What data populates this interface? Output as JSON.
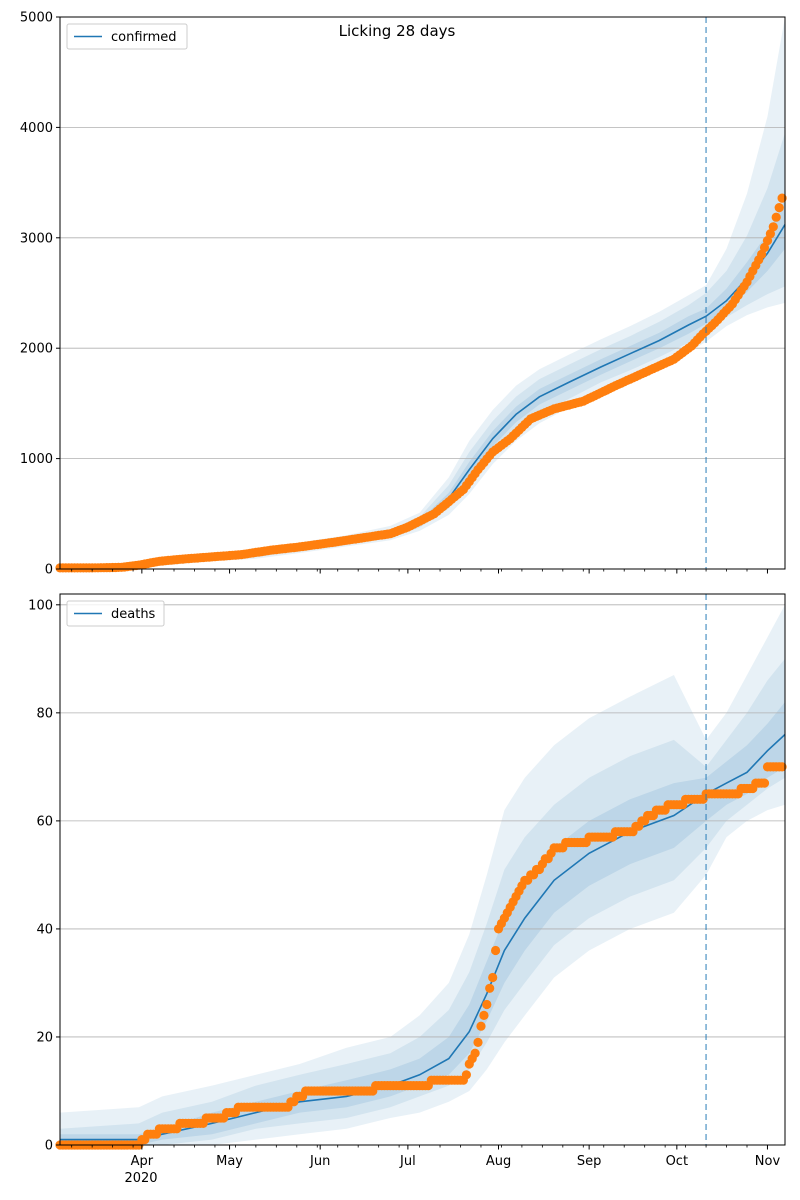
{
  "title": "Licking 28 days",
  "colors": {
    "model_line": "#1f77b4",
    "observed_points": "#ff7f0e",
    "band": "#1f77b4",
    "forecast_marker": "#1f77b4",
    "grid": "#b0b0b0"
  },
  "x_axis": {
    "month_ticks": [
      {
        "label": "Apr",
        "date": "2020-04-01"
      },
      {
        "label": "May",
        "date": "2020-05-01"
      },
      {
        "label": "Jun",
        "date": "2020-06-01"
      },
      {
        "label": "Jul",
        "date": "2020-07-01"
      },
      {
        "label": "Aug",
        "date": "2020-08-01"
      },
      {
        "label": "Sep",
        "date": "2020-09-01"
      },
      {
        "label": "Oct",
        "date": "2020-10-01"
      },
      {
        "label": "Nov",
        "date": "2020-11-01"
      }
    ],
    "year_label": "2020",
    "xlim": [
      "2020-03-04",
      "2020-11-07"
    ]
  },
  "forecast_start": "2020-10-11",
  "chart_data": [
    {
      "type": "line",
      "legend": {
        "label": "confirmed",
        "placement": "upper-left"
      },
      "ylim": [
        0,
        5000
      ],
      "yticks": [
        0,
        1000,
        2000,
        3000,
        4000,
        5000
      ],
      "grid": "y",
      "x": [
        "2020-03-04",
        "2020-03-20",
        "2020-03-30",
        "2020-04-10",
        "2020-04-25",
        "2020-05-10",
        "2020-05-25",
        "2020-06-10",
        "2020-06-25",
        "2020-07-05",
        "2020-07-15",
        "2020-07-22",
        "2020-07-30",
        "2020-08-07",
        "2020-08-15",
        "2020-08-25",
        "2020-09-05",
        "2020-09-15",
        "2020-09-25",
        "2020-10-05",
        "2020-10-11",
        "2020-10-18",
        "2020-10-25",
        "2020-11-01",
        "2020-11-07"
      ],
      "series": [
        {
          "name": "confirmed",
          "role": "model",
          "values": [
            5,
            10,
            20,
            60,
            100,
            130,
            190,
            250,
            320,
            420,
            640,
            900,
            1180,
            1400,
            1560,
            1690,
            1830,
            1950,
            2070,
            2210,
            2290,
            2430,
            2630,
            2860,
            3120
          ]
        },
        {
          "role": "band-25-75",
          "lower": [
            4,
            8,
            18,
            55,
            95,
            120,
            180,
            240,
            305,
            400,
            600,
            840,
            1110,
            1330,
            1490,
            1620,
            1760,
            1880,
            2000,
            2130,
            2220,
            2340,
            2510,
            2700,
            2900
          ],
          "upper": [
            6,
            12,
            23,
            66,
            106,
            140,
            200,
            262,
            335,
            440,
            690,
            970,
            1250,
            1470,
            1630,
            1760,
            1900,
            2020,
            2140,
            2290,
            2360,
            2540,
            2780,
            3040,
            3350
          ]
        },
        {
          "role": "band-10-90",
          "lower": [
            2,
            5,
            14,
            45,
            85,
            108,
            165,
            225,
            285,
            375,
            550,
            760,
            1030,
            1250,
            1410,
            1540,
            1690,
            1800,
            1920,
            2050,
            2140,
            2280,
            2390,
            2490,
            2560
          ]
        },
        {
          "role": "band-10-90-upper",
          "values": [
            9,
            16,
            30,
            76,
            118,
            155,
            218,
            282,
            360,
            470,
            760,
            1060,
            1340,
            1560,
            1720,
            1850,
            1990,
            2110,
            2240,
            2390,
            2500,
            2700,
            3020,
            3450,
            3950
          ]
        },
        {
          "role": "band-2.5-97.5",
          "lower": [
            0,
            2,
            8,
            35,
            72,
            92,
            145,
            205,
            260,
            345,
            490,
            680,
            950,
            1160,
            1320,
            1460,
            1610,
            1720,
            1840,
            1960,
            2060,
            2200,
            2300,
            2370,
            2410
          ],
          "upper": [
            12,
            22,
            38,
            88,
            132,
            172,
            240,
            305,
            390,
            510,
            830,
            1160,
            1440,
            1660,
            1810,
            1940,
            2080,
            2200,
            2330,
            2480,
            2570,
            2900,
            3400,
            4100,
            5000
          ]
        }
      ],
      "observed": {
        "x": [
          "2020-03-04",
          "2020-03-15",
          "2020-03-25",
          "2020-03-31",
          "2020-04-07",
          "2020-04-15",
          "2020-04-25",
          "2020-05-05",
          "2020-05-15",
          "2020-05-25",
          "2020-06-05",
          "2020-06-15",
          "2020-06-25",
          "2020-07-01",
          "2020-07-10",
          "2020-07-20",
          "2020-07-25",
          "2020-07-30",
          "2020-08-05",
          "2020-08-12",
          "2020-08-20",
          "2020-08-30",
          "2020-09-10",
          "2020-09-20",
          "2020-09-30",
          "2020-10-06",
          "2020-10-10",
          "2020-10-14",
          "2020-10-20",
          "2020-10-25",
          "2020-10-30",
          "2020-11-03",
          "2020-11-06"
        ],
        "values": [
          10,
          10,
          15,
          35,
          70,
          90,
          110,
          130,
          170,
          200,
          240,
          280,
          320,
          380,
          500,
          720,
          900,
          1060,
          1180,
          1360,
          1450,
          1520,
          1660,
          1780,
          1900,
          2020,
          2130,
          2230,
          2400,
          2600,
          2850,
          3100,
          3360
        ]
      }
    },
    {
      "type": "line",
      "legend": {
        "label": "deaths",
        "placement": "upper-left"
      },
      "ylim": [
        0,
        102
      ],
      "yticks": [
        0,
        20,
        40,
        60,
        80,
        100
      ],
      "grid": "y",
      "x": [
        "2020-03-04",
        "2020-03-31",
        "2020-04-08",
        "2020-04-25",
        "2020-05-10",
        "2020-05-25",
        "2020-06-10",
        "2020-06-25",
        "2020-07-05",
        "2020-07-15",
        "2020-07-22",
        "2020-07-28",
        "2020-08-03",
        "2020-08-10",
        "2020-08-20",
        "2020-09-01",
        "2020-09-15",
        "2020-09-30",
        "2020-10-11",
        "2020-10-18",
        "2020-10-25",
        "2020-11-01",
        "2020-11-07"
      ],
      "series": [
        {
          "name": "deaths",
          "role": "model",
          "values": [
            1,
            1,
            2,
            4,
            6,
            8,
            9,
            11,
            13,
            16,
            21,
            28,
            36,
            42,
            49,
            54,
            58,
            61,
            65,
            67,
            69,
            73,
            76
          ]
        },
        {
          "role": "band-25-75",
          "lower": [
            0,
            0,
            1,
            2,
            4,
            6,
            7,
            9,
            11,
            13,
            17,
            23,
            30,
            36,
            43,
            48,
            52,
            55,
            60,
            63,
            65,
            68,
            70
          ],
          "upper": [
            2,
            2,
            3,
            6,
            8,
            10,
            12,
            14,
            16,
            20,
            26,
            34,
            42,
            48,
            55,
            60,
            64,
            67,
            68,
            71,
            74,
            78,
            82
          ]
        },
        {
          "role": "band-10-90",
          "lower": [
            0,
            0,
            0,
            1,
            3,
            4,
            5,
            7,
            9,
            11,
            14,
            19,
            25,
            30,
            37,
            42,
            46,
            49,
            55,
            60,
            63,
            66,
            68
          ],
          "upper": [
            3,
            4,
            6,
            8,
            11,
            13,
            15,
            17,
            20,
            25,
            32,
            41,
            51,
            57,
            63,
            68,
            72,
            75,
            70,
            75,
            80,
            86,
            90
          ]
        },
        {
          "role": "band-2.5-97.5",
          "lower": [
            0,
            0,
            0,
            0,
            1,
            2,
            3,
            5,
            6,
            8,
            10,
            14,
            19,
            24,
            31,
            36,
            40,
            43,
            50,
            57,
            60,
            62,
            63
          ],
          "upper": [
            6,
            7,
            9,
            11,
            13,
            15,
            18,
            20,
            24,
            30,
            39,
            50,
            62,
            68,
            74,
            79,
            83,
            87,
            75,
            80,
            87,
            94,
            100
          ]
        }
      ],
      "observed": {
        "x": [
          "2020-03-04",
          "2020-03-31",
          "2020-04-03",
          "2020-04-10",
          "2020-04-18",
          "2020-04-28",
          "2020-05-05",
          "2020-05-20",
          "2020-05-28",
          "2020-06-05",
          "2020-06-15",
          "2020-06-25",
          "2020-07-05",
          "2020-07-12",
          "2020-07-20",
          "2020-07-24",
          "2020-07-27",
          "2020-07-30",
          "2020-08-01",
          "2020-08-05",
          "2020-08-10",
          "2020-08-15",
          "2020-08-20",
          "2020-08-28",
          "2020-09-05",
          "2020-09-15",
          "2020-09-22",
          "2020-09-30",
          "2020-10-07",
          "2020-10-14",
          "2020-10-20",
          "2020-10-25",
          "2020-10-31",
          "2020-11-01",
          "2020-11-06"
        ],
        "values": [
          0,
          0,
          2,
          3,
          4,
          5,
          7,
          7,
          10,
          10,
          10,
          11,
          11,
          12,
          12,
          17,
          24,
          31,
          40,
          44,
          49,
          51,
          55,
          56,
          57,
          58,
          61,
          63,
          64,
          65,
          65,
          66,
          67,
          70,
          70
        ]
      }
    }
  ]
}
